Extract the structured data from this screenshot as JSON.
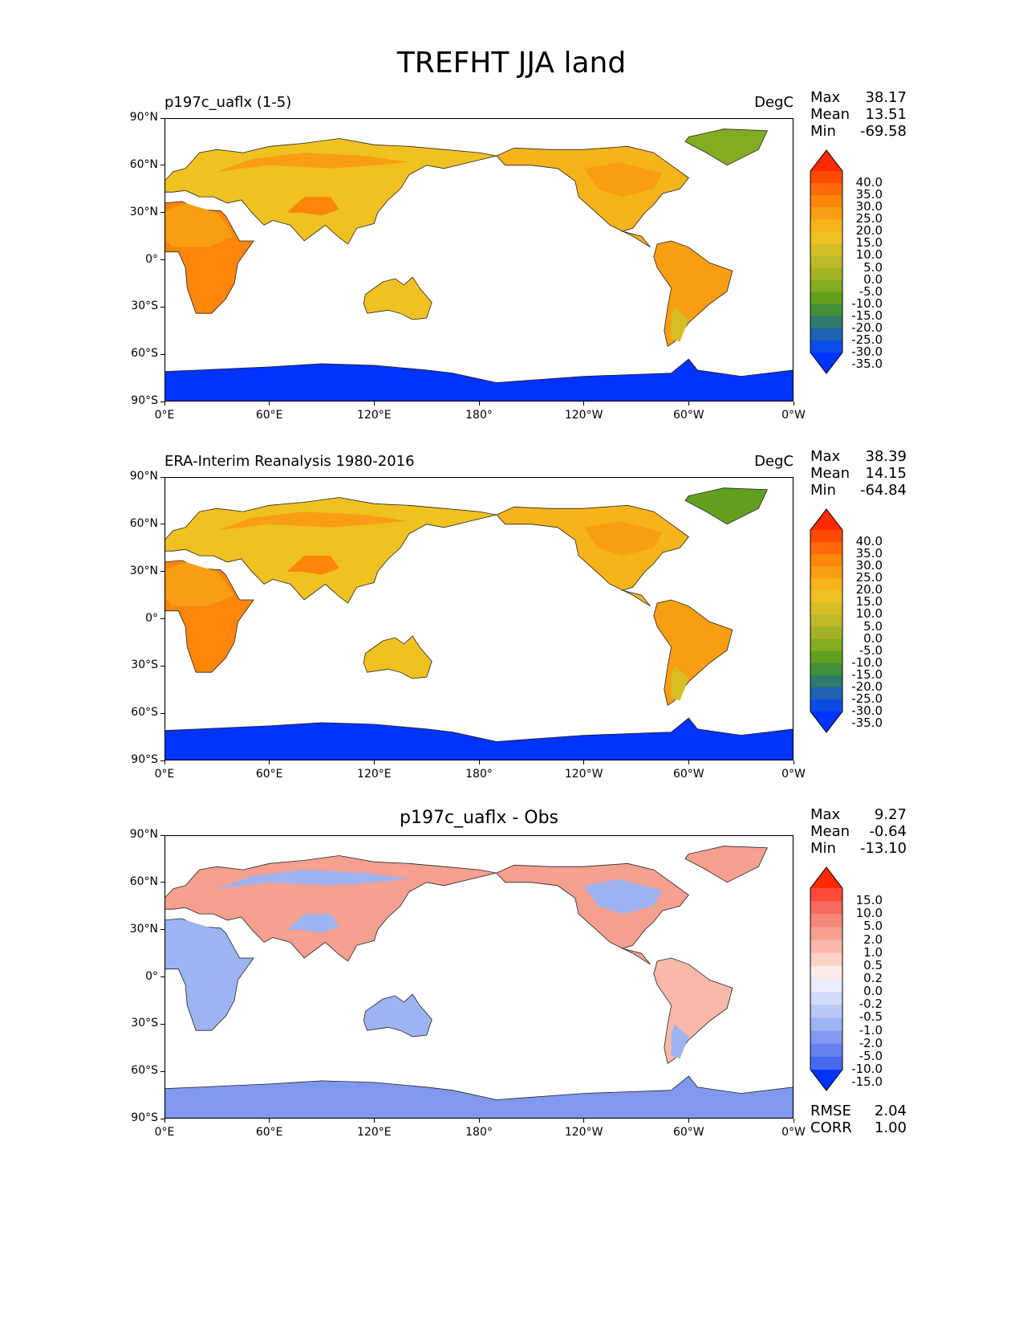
{
  "figure": {
    "title": "TREFHT JJA land"
  },
  "chart_data": [
    {
      "type": "heatmap",
      "title": "p197c_uaflx (1-5)",
      "units": "DegC",
      "stats": {
        "max": "38.17",
        "mean": "13.51",
        "min": "-69.58"
      },
      "xlabel": "",
      "ylabel": "",
      "x_ticks": [
        "0°E",
        "60°E",
        "120°E",
        "180°",
        "120°W",
        "60°W",
        "0°W"
      ],
      "y_ticks": [
        "90°N",
        "60°N",
        "30°N",
        "0°",
        "30°S",
        "60°S",
        "90°S"
      ],
      "colorbar": {
        "levels": [
          "40.0",
          "35.0",
          "30.0",
          "25.0",
          "20.0",
          "15.0",
          "10.0",
          "5.0",
          "0.0",
          "-5.0",
          "-10.0",
          "-15.0",
          "-20.0",
          "-25.0",
          "-30.0",
          "-35.0"
        ],
        "colors": [
          "#ff2a00",
          "#ff4a00",
          "#fd6a05",
          "#fb860a",
          "#f99e12",
          "#f6b41a",
          "#f0c221",
          "#d6bf26",
          "#bdb927",
          "#a2b426",
          "#84ac22",
          "#61a01f",
          "#428f3a",
          "#2f7b6c",
          "#1f64b2",
          "#0b4ce8",
          "#0033ff"
        ]
      },
      "series": [
        {
          "name": "Eurasia",
          "values": [
            14,
            22,
            26
          ]
        },
        {
          "name": "Africa",
          "values": [
            27,
            24
          ]
        },
        {
          "name": "North America",
          "values": [
            18,
            24
          ]
        },
        {
          "name": "South America",
          "values": [
            22,
            8
          ]
        },
        {
          "name": "Australia",
          "values": [
            14
          ]
        },
        {
          "name": "Greenland",
          "values": [
            -8
          ]
        },
        {
          "name": "Antarctica",
          "values": [
            -50
          ]
        }
      ]
    },
    {
      "type": "heatmap",
      "title": "ERA-Interim Reanalysis 1980-2016",
      "units": "DegC",
      "stats": {
        "max": "38.39",
        "mean": "14.15",
        "min": "-64.84"
      },
      "xlabel": "",
      "ylabel": "",
      "x_ticks": [
        "0°E",
        "60°E",
        "120°E",
        "180°",
        "120°W",
        "60°W",
        "0°W"
      ],
      "y_ticks": [
        "90°N",
        "60°N",
        "30°N",
        "0°",
        "30°S",
        "60°S",
        "90°S"
      ],
      "colorbar": {
        "levels": [
          "40.0",
          "35.0",
          "30.0",
          "25.0",
          "20.0",
          "15.0",
          "10.0",
          "5.0",
          "0.0",
          "-5.0",
          "-10.0",
          "-15.0",
          "-20.0",
          "-25.0",
          "-30.0",
          "-35.0"
        ],
        "colors": [
          "#ff2a00",
          "#ff4a00",
          "#fd6a05",
          "#fb860a",
          "#f99e12",
          "#f6b41a",
          "#f0c221",
          "#d6bf26",
          "#bdb927",
          "#a2b426",
          "#84ac22",
          "#61a01f",
          "#428f3a",
          "#2f7b6c",
          "#1f64b2",
          "#0b4ce8",
          "#0033ff"
        ]
      },
      "series": [
        {
          "name": "Eurasia",
          "values": [
            14,
            22,
            28
          ]
        },
        {
          "name": "Africa",
          "values": [
            29,
            24
          ]
        },
        {
          "name": "North America",
          "values": [
            17,
            24
          ]
        },
        {
          "name": "South America",
          "values": [
            22,
            7
          ]
        },
        {
          "name": "Australia",
          "values": [
            14
          ]
        },
        {
          "name": "Greenland",
          "values": [
            -10
          ]
        },
        {
          "name": "Antarctica",
          "values": [
            -48
          ]
        }
      ]
    },
    {
      "type": "heatmap",
      "title": "p197c_uaflx - Obs",
      "units": "",
      "stats": {
        "max": "9.27",
        "mean": "-0.64",
        "min": "-13.10",
        "rmse": "2.04",
        "corr": "1.00"
      },
      "stat_labels": {
        "max": "Max",
        "mean": "Mean",
        "min": "Min",
        "rmse": "RMSE",
        "corr": "CORR"
      },
      "xlabel": "",
      "ylabel": "",
      "x_ticks": [
        "0°E",
        "60°E",
        "120°E",
        "180°",
        "120°W",
        "60°W",
        "0°W"
      ],
      "y_ticks": [
        "90°N",
        "60°N",
        "30°N",
        "0°",
        "30°S",
        "60°S",
        "90°S"
      ],
      "colorbar": {
        "levels": [
          "15.0",
          "10.0",
          "5.0",
          "2.0",
          "1.0",
          "0.5",
          "0.2",
          "0.0",
          "-0.2",
          "-0.5",
          "-1.0",
          "-2.0",
          "-5.0",
          "-10.0",
          "-15.0"
        ],
        "colors": [
          "#ff2a00",
          "#fe4a3a",
          "#f76a5f",
          "#f5867a",
          "#f6a090",
          "#f8b9aa",
          "#fad2c8",
          "#fdeae6",
          "#eaeefc",
          "#d2dcfa",
          "#b8c8f6",
          "#9eb3f2",
          "#8099ef",
          "#6481ee",
          "#4769f0",
          "#0033ff"
        ]
      },
      "series": [
        {
          "name": "Eurasia",
          "values": [
            2,
            -1
          ]
        },
        {
          "name": "Africa",
          "values": [
            -1
          ]
        },
        {
          "name": "North America",
          "values": [
            2,
            -1
          ]
        },
        {
          "name": "South America",
          "values": [
            1,
            -1
          ]
        },
        {
          "name": "Australia",
          "values": [
            -1
          ]
        },
        {
          "name": "Greenland",
          "values": [
            2
          ]
        },
        {
          "name": "Antarctica",
          "values": [
            -2
          ]
        }
      ]
    }
  ],
  "labels": {
    "max": "Max",
    "mean": "Mean",
    "min": "Min"
  }
}
